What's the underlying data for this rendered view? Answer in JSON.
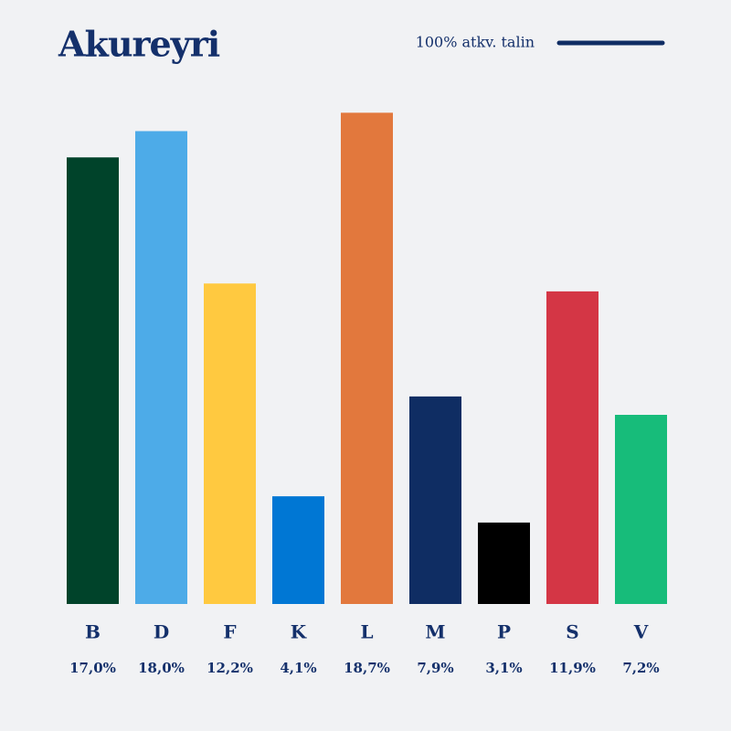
{
  "chart_data": {
    "type": "bar",
    "title": "Akureyri",
    "reference_line": {
      "label": "100% atkv. talin",
      "color": "#0f2d63"
    },
    "categories": [
      "B",
      "D",
      "F",
      "K",
      "L",
      "M",
      "P",
      "S",
      "V"
    ],
    "values": [
      17.0,
      18.0,
      12.2,
      4.1,
      18.7,
      7.9,
      3.1,
      11.9,
      7.2
    ],
    "value_labels": [
      "17,0%",
      "18,0%",
      "12,2%",
      "4,1%",
      "18,7%",
      "7,9%",
      "3,1%",
      "11,9%",
      "7,2%"
    ],
    "colors": [
      "#00432a",
      "#4dabe8",
      "#ffc940",
      "#0077d4",
      "#e2783d",
      "#0f2d63",
      "#000000",
      "#d43645",
      "#17bc7a"
    ],
    "ylim": [
      0,
      20
    ]
  }
}
